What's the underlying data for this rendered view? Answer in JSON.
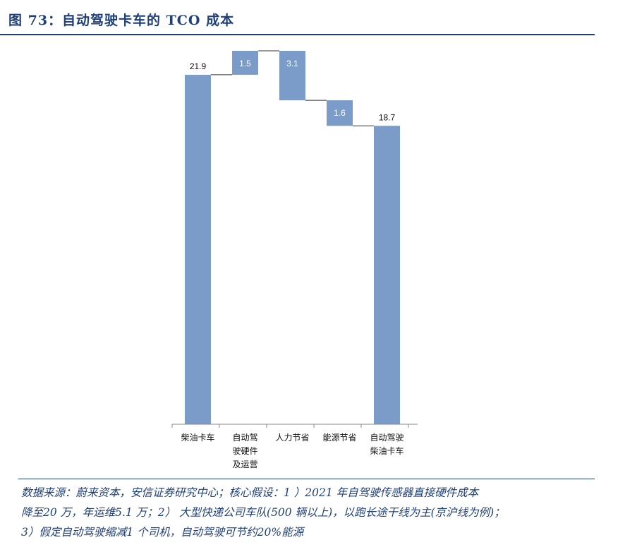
{
  "figure_title": "图 73：自动驾驶卡车的 TCO 成本",
  "source_lines": [
    "数据来源：蔚来资本，安信证券研究中心；核心假设：1 ）2021 年自驾驶传感器直接硬件成本",
    "降至20 万，年运维5.1 万；2） 大型快递公司车队(500 辆以上)，以跑长途干线为主(京沪线为例)；",
    "3）假定自动驾驶缩减1 个司机，自动驾驶可节约20%能源"
  ],
  "colors": {
    "bar": "#7b9bc9",
    "title": "#1f3f7a",
    "connector": "#333333"
  },
  "chart_data": {
    "type": "waterfall",
    "title": "",
    "xlabel": "",
    "ylabel": "",
    "ylim": [
      0,
      23.4
    ],
    "grid": false,
    "categories": [
      [
        "柴油卡车"
      ],
      [
        "自动驾",
        "驶硬件",
        "及运营"
      ],
      [
        "人力节省"
      ],
      [
        "能源节省"
      ],
      [
        "自动驾驶",
        "柴油卡车"
      ]
    ],
    "values": [
      21.9,
      1.5,
      -3.1,
      -1.6,
      18.7
    ],
    "kinds": [
      "total",
      "delta",
      "delta",
      "delta",
      "total"
    ],
    "labels": [
      "21.9",
      "1.5",
      "3.1",
      "1.6",
      "18.7"
    ]
  }
}
